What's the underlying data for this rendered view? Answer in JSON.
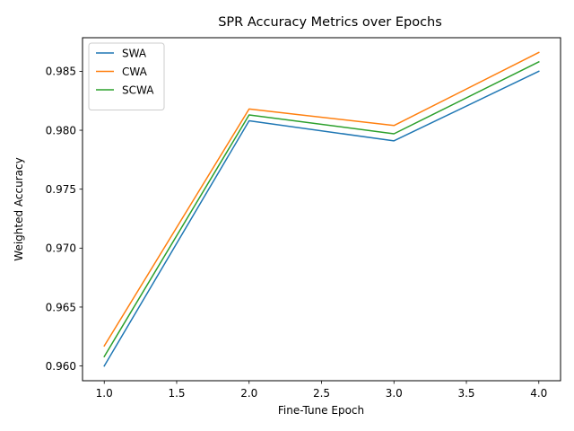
{
  "chart_data": {
    "type": "line",
    "title": "SPR Accuracy Metrics over Epochs",
    "xlabel": "Fine-Tune Epoch",
    "ylabel": "Weighted Accuracy",
    "x": [
      1.0,
      2.0,
      3.0,
      4.0
    ],
    "xlim": [
      0.85,
      4.15
    ],
    "ylim": [
      0.95875,
      0.98785
    ],
    "xticks": [
      1.0,
      1.5,
      2.0,
      2.5,
      3.0,
      3.5,
      4.0
    ],
    "xtick_labels": [
      "1.0",
      "1.5",
      "2.0",
      "2.5",
      "3.0",
      "3.5",
      "4.0"
    ],
    "yticks": [
      0.96,
      0.965,
      0.97,
      0.975,
      0.98,
      0.985
    ],
    "ytick_labels": [
      "0.960",
      "0.965",
      "0.970",
      "0.975",
      "0.980",
      "0.985"
    ],
    "grid": false,
    "legend_position": "top-left",
    "series": [
      {
        "name": "SWA",
        "color": "#1f77b4",
        "values": [
          0.96,
          0.9808,
          0.9791,
          0.985
        ]
      },
      {
        "name": "CWA",
        "color": "#ff7f0e",
        "values": [
          0.9617,
          0.9818,
          0.9804,
          0.9866
        ]
      },
      {
        "name": "SCWA",
        "color": "#2ca02c",
        "values": [
          0.9608,
          0.9813,
          0.9797,
          0.9858
        ]
      }
    ]
  }
}
